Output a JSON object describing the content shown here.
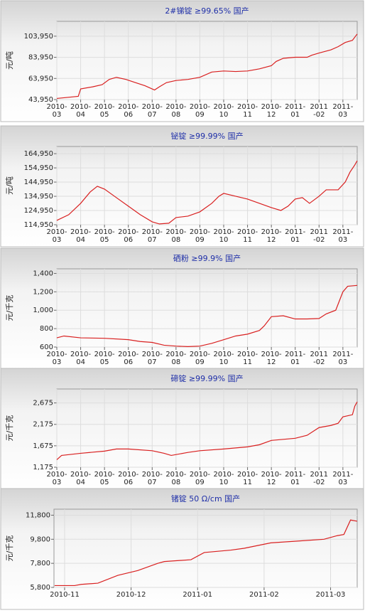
{
  "chart_data": [
    {
      "type": "line",
      "title": "2#锑锭 ≥99.65% 国产",
      "ylabel": "元/吨",
      "x": [
        0,
        0.9,
        1.0,
        1.5,
        1.9,
        2.2,
        2.5,
        2.9,
        3.3,
        3.7,
        4.1,
        4.3,
        4.6,
        5,
        5.5,
        6,
        6.5,
        7,
        7.5,
        8,
        8.5,
        9,
        9.2,
        9.5,
        10,
        10.5,
        10.7,
        11,
        11.5,
        11.8,
        12.1,
        12.4,
        12.6
      ],
      "series": [
        {
          "color": "#d92020",
          "values": [
            45000,
            47000,
            54000,
            56000,
            58000,
            63000,
            65000,
            63000,
            60000,
            57000,
            53000,
            56000,
            60000,
            62000,
            63000,
            65000,
            70000,
            71000,
            70500,
            71000,
            73000,
            76000,
            80000,
            83000,
            84000,
            84000,
            86000,
            88000,
            91000,
            94000,
            98000,
            100000,
            106000
          ]
        }
      ],
      "xlim": [
        0,
        12.6
      ],
      "ylim": [
        43950,
        118000
      ],
      "yticks": [
        {
          "value": 43950,
          "label": "43,950"
        },
        {
          "value": 63950,
          "label": "63,950"
        },
        {
          "value": 83950,
          "label": "83,950"
        },
        {
          "value": 103950,
          "label": "103,950"
        }
      ],
      "xticks": [
        {
          "value": 0,
          "label": [
            "2010-",
            "03"
          ]
        },
        {
          "value": 1,
          "label": [
            "2010-",
            "04"
          ]
        },
        {
          "value": 2,
          "label": [
            "2010-",
            "05"
          ]
        },
        {
          "value": 3,
          "label": [
            "2010-",
            "06"
          ]
        },
        {
          "value": 4,
          "label": [
            "2010-",
            "07"
          ]
        },
        {
          "value": 5,
          "label": [
            "2010-",
            "08"
          ]
        },
        {
          "value": 6,
          "label": [
            "2010-",
            "09"
          ]
        },
        {
          "value": 7,
          "label": [
            "2010-",
            "10"
          ]
        },
        {
          "value": 8,
          "label": [
            "2010-",
            "11"
          ]
        },
        {
          "value": 9,
          "label": [
            "2010-",
            "12"
          ]
        },
        {
          "value": 10,
          "label": [
            "2011-",
            "01"
          ]
        },
        {
          "value": 11,
          "label": [
            "2011",
            "-02"
          ]
        },
        {
          "value": 12,
          "label": [
            "2011-",
            "03"
          ]
        }
      ],
      "grid": true
    },
    {
      "type": "line",
      "title": "铋锭 ≥99.99% 国产",
      "ylabel": "元/吨",
      "x": [
        0,
        0.5,
        1,
        1.4,
        1.7,
        2,
        2.5,
        3,
        3.5,
        4,
        4.3,
        4.7,
        5,
        5.5,
        6,
        6.5,
        6.8,
        7,
        7.5,
        8,
        8.5,
        9,
        9.4,
        9.7,
        10,
        10.3,
        10.6,
        11,
        11.3,
        11.8,
        12.1,
        12.3,
        12.5,
        12.6
      ],
      "series": [
        {
          "color": "#d92020",
          "values": [
            118000,
            122000,
            130000,
            138000,
            142000,
            140000,
            134000,
            128000,
            122000,
            117000,
            115500,
            116000,
            120000,
            121000,
            124000,
            130000,
            135000,
            137000,
            135000,
            133000,
            130000,
            127000,
            125000,
            128000,
            133000,
            134000,
            130000,
            135000,
            139500,
            139500,
            145000,
            152000,
            157000,
            160000
          ]
        }
      ],
      "xlim": [
        0,
        12.6
      ],
      "ylim": [
        114950,
        170000
      ],
      "yticks": [
        {
          "value": 114950,
          "label": "114,950"
        },
        {
          "value": 124950,
          "label": "124,950"
        },
        {
          "value": 134950,
          "label": "134,950"
        },
        {
          "value": 144950,
          "label": "144,950"
        },
        {
          "value": 154950,
          "label": "154,950"
        },
        {
          "value": 164950,
          "label": "164,950"
        }
      ],
      "xticks": [
        {
          "value": 0,
          "label": [
            "2010-",
            "03"
          ]
        },
        {
          "value": 1,
          "label": [
            "2010-",
            "04"
          ]
        },
        {
          "value": 2,
          "label": [
            "2010-",
            "05"
          ]
        },
        {
          "value": 3,
          "label": [
            "2010-",
            "06"
          ]
        },
        {
          "value": 4,
          "label": [
            "2010-",
            "07"
          ]
        },
        {
          "value": 5,
          "label": [
            "2010-",
            "08"
          ]
        },
        {
          "value": 6,
          "label": [
            "2010-",
            "09"
          ]
        },
        {
          "value": 7,
          "label": [
            "2010-",
            "10"
          ]
        },
        {
          "value": 8,
          "label": [
            "2010-",
            "11"
          ]
        },
        {
          "value": 9,
          "label": [
            "2010-",
            "12"
          ]
        },
        {
          "value": 10,
          "label": [
            "2011-",
            "01"
          ]
        },
        {
          "value": 11,
          "label": [
            "2011",
            "-02"
          ]
        },
        {
          "value": 12,
          "label": [
            "2011-",
            "03"
          ]
        }
      ],
      "grid": true
    },
    {
      "type": "line",
      "title": "硒粉 ≥99.9% 国产",
      "ylabel": "元/千克",
      "x": [
        0,
        0.3,
        1,
        2,
        3,
        3.5,
        4,
        4.5,
        5,
        5.5,
        6,
        6.5,
        7,
        7.5,
        8,
        8.5,
        8.7,
        9,
        9.5,
        10,
        10.5,
        11,
        11.3,
        11.7,
        12,
        12.2,
        12.6
      ],
      "series": [
        {
          "color": "#d92020",
          "values": [
            700,
            720,
            700,
            695,
            680,
            660,
            650,
            620,
            610,
            605,
            610,
            640,
            680,
            720,
            740,
            780,
            830,
            930,
            940,
            905,
            905,
            910,
            960,
            1000,
            1200,
            1260,
            1270
          ]
        }
      ],
      "xlim": [
        0,
        12.6
      ],
      "ylim": [
        600,
        1450
      ],
      "yticks": [
        600,
        800,
        {
          "value": 1000,
          "label": "1,000"
        },
        {
          "value": 1200,
          "label": "1,200"
        },
        {
          "value": 1400,
          "label": "1,400"
        }
      ],
      "xticks": [
        {
          "value": 0,
          "label": [
            "2010-",
            "03"
          ]
        },
        {
          "value": 1,
          "label": [
            "2010-",
            "04"
          ]
        },
        {
          "value": 2,
          "label": [
            "2010-",
            "05"
          ]
        },
        {
          "value": 3,
          "label": [
            "2010-",
            "06"
          ]
        },
        {
          "value": 4,
          "label": [
            "2010-",
            "07"
          ]
        },
        {
          "value": 5,
          "label": [
            "2010-",
            "08"
          ]
        },
        {
          "value": 6,
          "label": [
            "2010-",
            "09"
          ]
        },
        {
          "value": 7,
          "label": [
            "2010-",
            "10"
          ]
        },
        {
          "value": 8,
          "label": [
            "2010-",
            "11"
          ]
        },
        {
          "value": 9,
          "label": [
            "2010-",
            "12"
          ]
        },
        {
          "value": 10,
          "label": [
            "2011-",
            "01"
          ]
        },
        {
          "value": 11,
          "label": [
            "2011",
            "-02"
          ]
        },
        {
          "value": 12,
          "label": [
            "2011-",
            "03"
          ]
        }
      ],
      "grid": true
    },
    {
      "type": "line",
      "title": "碲锭 ≥99.99% 国产",
      "ylabel": "元/千克",
      "x": [
        0,
        0.2,
        1,
        2,
        2.5,
        3,
        4,
        4.5,
        4.8,
        5.5,
        6,
        7,
        8,
        8.5,
        9,
        10,
        10.5,
        11,
        11.5,
        11.8,
        12,
        12.4,
        12.5,
        12.6
      ],
      "series": [
        {
          "color": "#d92020",
          "values": [
            1350,
            1450,
            1500,
            1550,
            1600,
            1600,
            1560,
            1500,
            1450,
            1520,
            1560,
            1600,
            1650,
            1700,
            1800,
            1850,
            1920,
            2100,
            2150,
            2200,
            2350,
            2400,
            2600,
            2700
          ]
        }
      ],
      "xlim": [
        0,
        12.6
      ],
      "ylim": [
        1175,
        3000
      ],
      "yticks": [
        {
          "value": 1175,
          "label": "1,175"
        },
        {
          "value": 1675,
          "label": "1,675"
        },
        {
          "value": 2175,
          "label": "2,175"
        },
        {
          "value": 2675,
          "label": "2,675"
        }
      ],
      "xticks": [
        {
          "value": 0,
          "label": [
            "2010-",
            "03"
          ]
        },
        {
          "value": 1,
          "label": [
            "2010-",
            "04"
          ]
        },
        {
          "value": 2,
          "label": [
            "2010-",
            "05"
          ]
        },
        {
          "value": 3,
          "label": [
            "2010-",
            "06"
          ]
        },
        {
          "value": 4,
          "label": [
            "2010-",
            "07"
          ]
        },
        {
          "value": 5,
          "label": [
            "2010-",
            "08"
          ]
        },
        {
          "value": 6,
          "label": [
            "2010-",
            "09"
          ]
        },
        {
          "value": 7,
          "label": [
            "2010-",
            "10"
          ]
        },
        {
          "value": 8,
          "label": [
            "2010-",
            "11"
          ]
        },
        {
          "value": 9,
          "label": [
            "2010-",
            "12"
          ]
        },
        {
          "value": 10,
          "label": [
            "2011-",
            "01"
          ]
        },
        {
          "value": 11,
          "label": [
            "2011",
            "-02"
          ]
        },
        {
          "value": 12,
          "label": [
            "2011-",
            "03"
          ]
        }
      ],
      "grid": true
    },
    {
      "type": "line",
      "title": "锗锭 50 Ω/cm 国产",
      "ylabel": "元/千克",
      "x": [
        -0.15,
        0.15,
        0.25,
        0.5,
        0.8,
        1.1,
        1.4,
        1.5,
        1.9,
        2.1,
        2.5,
        2.7,
        3.1,
        3.5,
        3.9,
        4.1,
        4.2,
        4.3,
        4.4
      ],
      "series": [
        {
          "color": "#d92020",
          "values": [
            5950,
            5950,
            6050,
            6150,
            6800,
            7200,
            7800,
            7950,
            8100,
            8700,
            8900,
            9050,
            9500,
            9650,
            9800,
            10100,
            10200,
            11400,
            11300
          ]
        }
      ],
      "xlim": [
        -0.16,
        4.4
      ],
      "ylim": [
        5800,
        12300
      ],
      "yticks": [
        {
          "value": 5800,
          "label": "5,800"
        },
        {
          "value": 7800,
          "label": "7,800"
        },
        {
          "value": 9800,
          "label": "9,800"
        },
        {
          "value": 11800,
          "label": "11,800"
        }
      ],
      "xticks": [
        {
          "value": 0,
          "label": [
            "2010-11"
          ]
        },
        {
          "value": 1,
          "label": [
            "2010-12"
          ]
        },
        {
          "value": 2,
          "label": [
            "2011-01"
          ]
        },
        {
          "value": 3,
          "label": [
            "2011-02"
          ]
        },
        {
          "value": 4,
          "label": [
            "2011-03"
          ]
        }
      ],
      "grid": true
    }
  ]
}
